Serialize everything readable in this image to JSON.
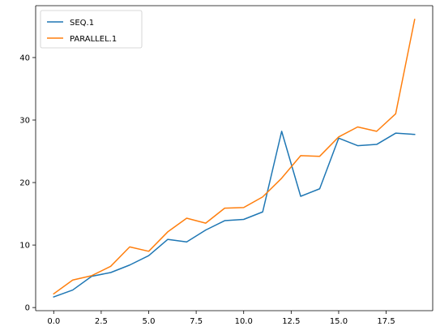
{
  "chart_data": {
    "type": "line",
    "x": [
      0,
      1,
      2,
      3,
      4,
      5,
      6,
      7,
      8,
      9,
      10,
      11,
      12,
      13,
      14,
      15,
      16,
      17,
      18,
      19
    ],
    "series": [
      {
        "name": "SEQ.1",
        "color": "#1f77b4",
        "values": [
          1.7,
          2.8,
          5.0,
          5.6,
          6.8,
          8.3,
          10.9,
          10.5,
          12.4,
          13.9,
          14.1,
          15.3,
          28.2,
          17.8,
          19.0,
          27.1,
          25.9,
          26.1,
          27.9,
          27.7
        ]
      },
      {
        "name": "PARALLEL.1",
        "color": "#ff7f0e",
        "values": [
          2.2,
          4.4,
          5.1,
          6.6,
          9.7,
          9.0,
          12.1,
          14.3,
          13.5,
          15.9,
          16.0,
          17.7,
          20.7,
          24.3,
          24.2,
          27.3,
          28.9,
          28.2,
          31.0,
          46.1
        ]
      }
    ],
    "xlim": [
      -0.95,
      19.95
    ],
    "ylim": [
      -0.5,
      48.3
    ],
    "xticks": [
      0.0,
      2.5,
      5.0,
      7.5,
      10.0,
      12.5,
      15.0,
      17.5
    ],
    "xtick_labels": [
      "0.0",
      "2.5",
      "5.0",
      "7.5",
      "10.0",
      "12.5",
      "15.0",
      "17.5"
    ],
    "yticks": [
      0,
      10,
      20,
      30,
      40
    ],
    "ytick_labels": [
      "0",
      "10",
      "20",
      "30",
      "40"
    ],
    "grid": false,
    "legend_position": "upper-left",
    "title": "",
    "xlabel": "",
    "ylabel": ""
  }
}
